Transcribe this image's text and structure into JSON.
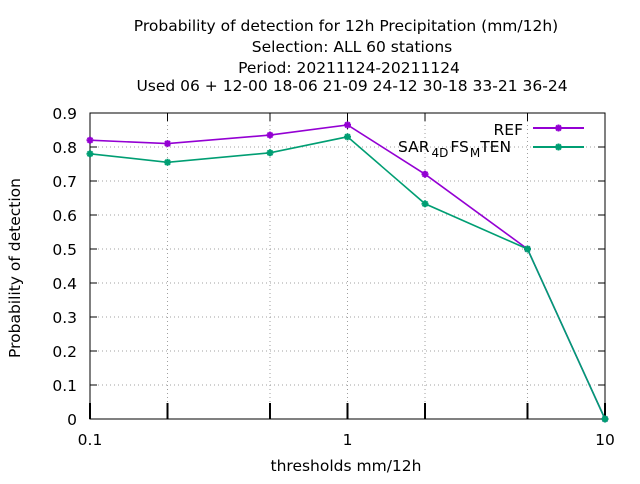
{
  "chart_data": {
    "type": "line",
    "title_lines": [
      "Probability of detection  for 12h Precipitation (mm/12h)",
      "Selection: ALL     60 stations",
      "Period: 20211124-20211124",
      "Used  06 + 12-00 18-06 21-09 24-12 30-18 33-21 36-24"
    ],
    "xlabel": "thresholds mm/12h",
    "ylabel": "Probability of detection",
    "xscale": "log",
    "xlim": [
      0.1,
      10
    ],
    "ylim": [
      0,
      0.9
    ],
    "x_ticks": [
      {
        "value": 0.1,
        "label": "0.1"
      },
      {
        "value": 1,
        "label": "1"
      },
      {
        "value": 10,
        "label": "10"
      }
    ],
    "x_minor_ticks": [
      0.2,
      0.5,
      2,
      5
    ],
    "y_ticks": [
      {
        "value": 0,
        "label": "0"
      },
      {
        "value": 0.1,
        "label": "0.1"
      },
      {
        "value": 0.2,
        "label": "0.2"
      },
      {
        "value": 0.3,
        "label": "0.3"
      },
      {
        "value": 0.4,
        "label": "0.4"
      },
      {
        "value": 0.5,
        "label": "0.5"
      },
      {
        "value": 0.6,
        "label": "0.6"
      },
      {
        "value": 0.7,
        "label": "0.7"
      },
      {
        "value": 0.8,
        "label": "0.8"
      },
      {
        "value": 0.9,
        "label": "0.9"
      }
    ],
    "grid": true,
    "legend_position": "top-right",
    "series": [
      {
        "name": "REF",
        "color": "#9400d3",
        "x": [
          0.1,
          0.2,
          0.5,
          1,
          2,
          5,
          10
        ],
        "y": [
          0.82,
          0.81,
          0.835,
          0.865,
          0.72,
          0.5,
          0.0
        ]
      },
      {
        "name_parts": [
          "SAR",
          "4D",
          "FS",
          "M",
          "TEN"
        ],
        "color": "#009e73",
        "x": [
          0.1,
          0.2,
          0.5,
          1,
          2,
          5,
          10
        ],
        "y": [
          0.78,
          0.755,
          0.783,
          0.83,
          0.633,
          0.5,
          0.0
        ]
      }
    ]
  }
}
